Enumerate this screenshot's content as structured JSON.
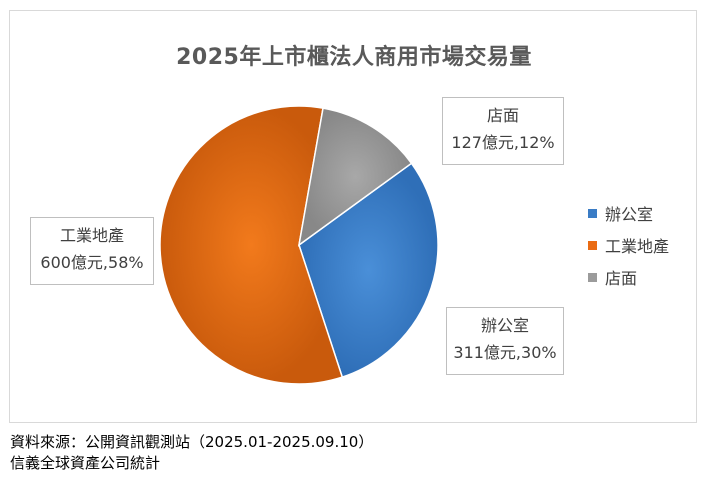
{
  "chart_data": {
    "type": "pie",
    "title": "2025年上市櫃法人商用市場交易量",
    "slices": [
      {
        "name": "辦公室",
        "value": 311,
        "percent": 30,
        "label_value": "311億元,30%",
        "color": "#3a7cc5"
      },
      {
        "name": "工業地產",
        "value": 600,
        "percent": 58,
        "label_value": "600億元,58%",
        "color": "#ea6b13"
      },
      {
        "name": "店面",
        "value": 127,
        "percent": 12,
        "label_value": "127億元,12%",
        "color": "#9b9b9b"
      }
    ],
    "legend": {
      "position": "right",
      "entries": [
        "辦公室",
        "工業地產",
        "店面"
      ]
    }
  },
  "footer": {
    "line1": "資料來源：公開資訊觀測站（2025.01-2025.09.10）",
    "line2": "信義全球資產公司統計"
  }
}
